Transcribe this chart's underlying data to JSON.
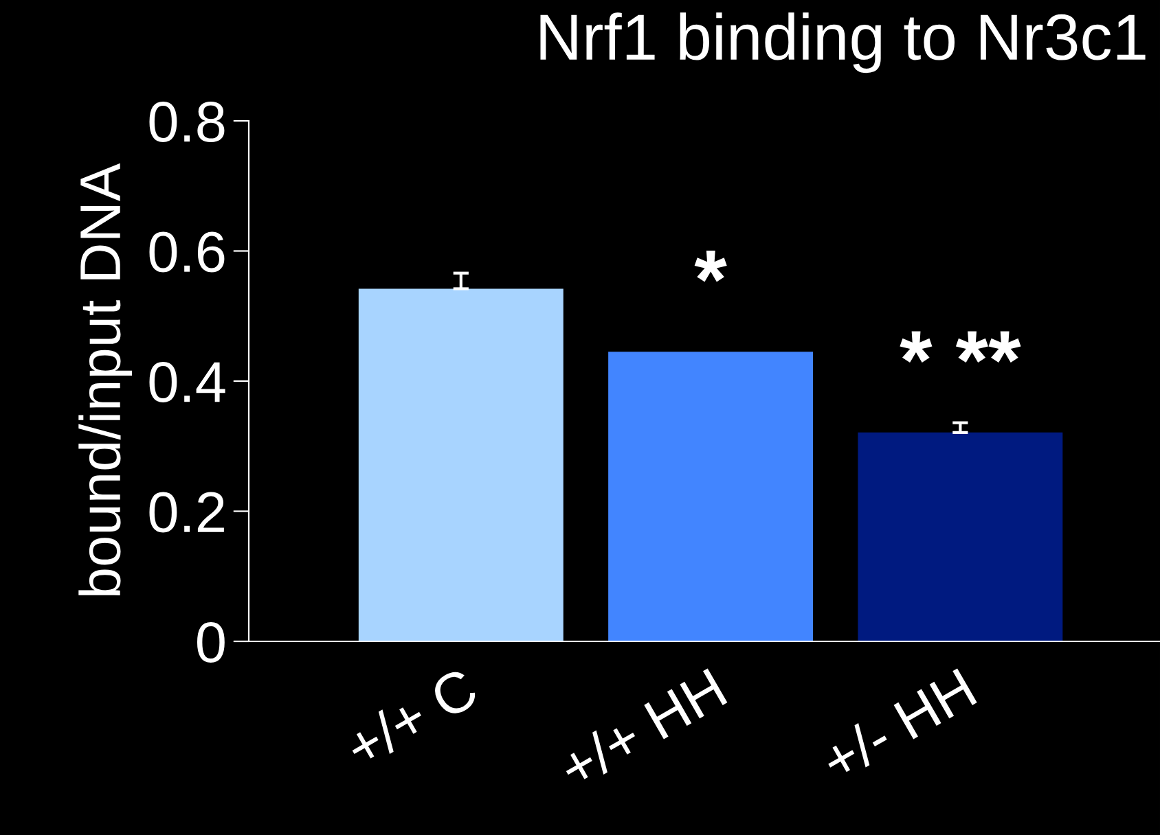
{
  "chart_data": {
    "type": "bar",
    "title": "Nrf1 binding to Nr3c1",
    "ylabel": "bound/input DNA",
    "categories": [
      "+/+ C",
      "+/+ HH",
      "+/- HH"
    ],
    "values": [
      0.542,
      0.445,
      0.321
    ],
    "colors": [
      "#a8d4ff",
      "#4285ff",
      "#001a80"
    ],
    "errors": [
      [
        0.542,
        0.566
      ],
      null,
      [
        0.321,
        0.336
      ]
    ],
    "ylim": [
      0,
      0.8
    ],
    "yticks": [
      0,
      0.2,
      0.4,
      0.6,
      0.8
    ],
    "annotations": [
      "*",
      "* **"
    ],
    "grid": false,
    "legend": false
  }
}
